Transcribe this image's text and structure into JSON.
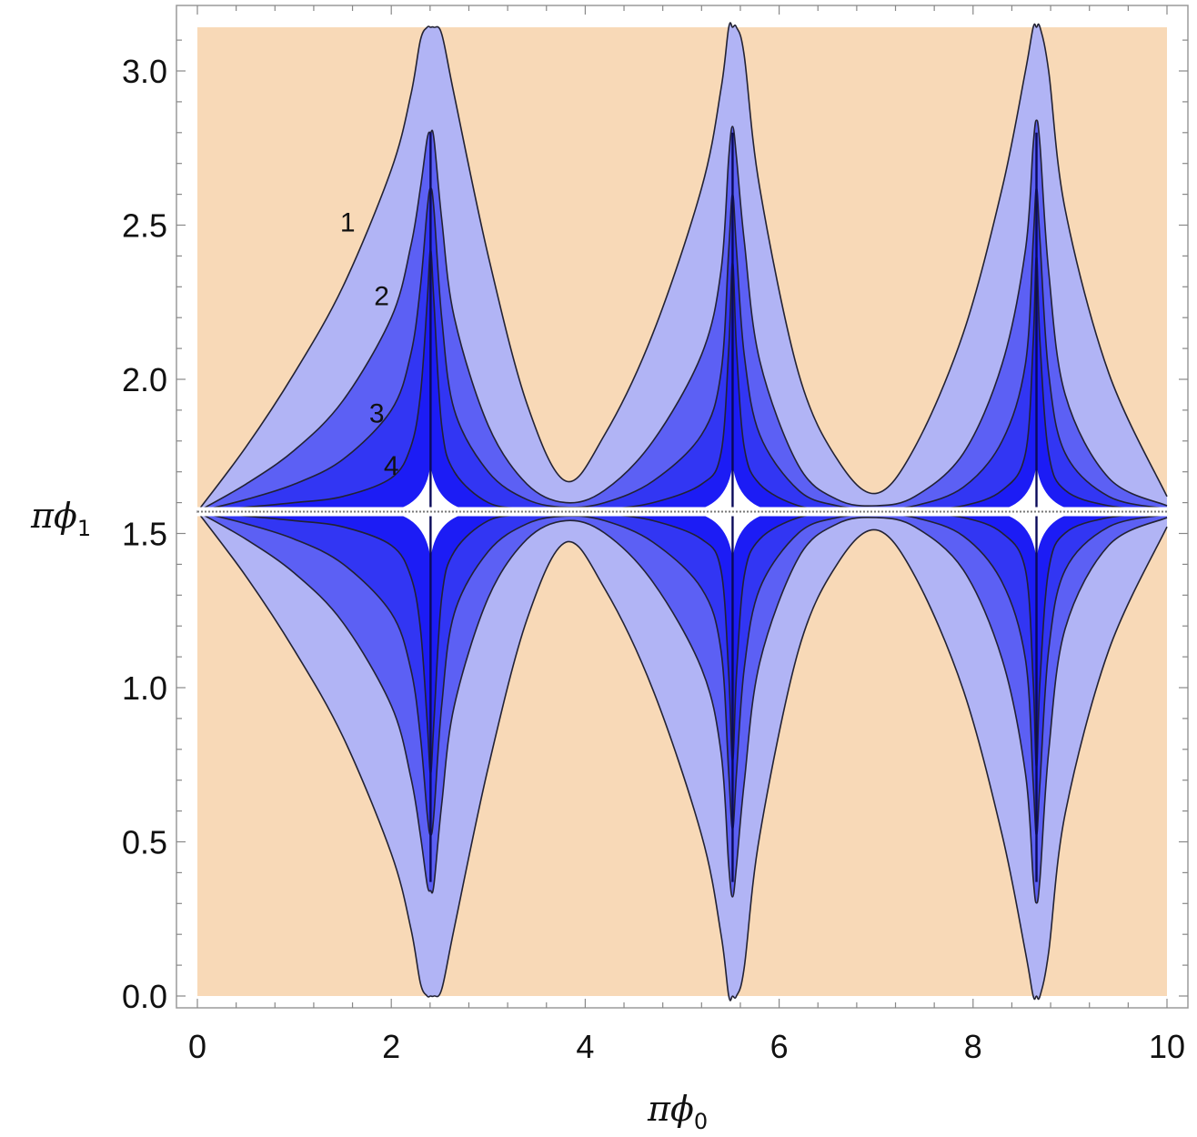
{
  "chart_data": {
    "type": "heatmap",
    "title": "",
    "xlabel": {
      "base": "πϕ",
      "sub": "0"
    },
    "ylabel": {
      "base": "πϕ",
      "sub": "1"
    },
    "xlim": [
      0,
      10
    ],
    "ylim": [
      0,
      3.14159
    ],
    "x_ticks": [
      0,
      2,
      4,
      6,
      8,
      10
    ],
    "x_tick_labels": [
      "0",
      "2",
      "4",
      "6",
      "8",
      "10"
    ],
    "y_ticks": [
      0.0,
      0.5,
      1.0,
      1.5,
      2.0,
      2.5,
      3.0
    ],
    "y_tick_labels": [
      "0.0",
      "0.5",
      "1.0",
      "1.5",
      "2.0",
      "2.5",
      "3.0"
    ],
    "grid": false,
    "legend": "none",
    "background_color": "#f8d9b7",
    "center_line_y": 1.5708,
    "spike_x": [
      2.405,
      5.52,
      8.654
    ],
    "levels": [
      {
        "label": "1",
        "color": "#b1b4f5",
        "label_at": [
          1.55,
          2.48
        ]
      },
      {
        "label": "2",
        "color": "#5c60f4",
        "label_at": [
          1.9,
          2.24
        ]
      },
      {
        "label": "3",
        "color": "#3236f3",
        "label_at": [
          1.85,
          1.86
        ]
      },
      {
        "label": "4",
        "color": "#1c1cf5",
        "label_at": [
          2.0,
          1.69
        ]
      }
    ],
    "inner_color": "#ffffff",
    "level_extent_y": [
      [
        0.004,
        0.42,
        0.0,
        0.44,
        0.1,
        0.4
      ],
      [
        0.003,
        0.3,
        0.0,
        0.31,
        0.07,
        0.29
      ],
      [
        0.002,
        0.2,
        0.0,
        0.21,
        0.05,
        0.2
      ],
      [
        0.0015,
        0.13,
        0.0,
        0.13,
        0.03,
        0.12
      ]
    ],
    "sample_x": [
      0,
      0.5,
      1.0,
      1.5,
      2.0,
      2.2,
      2.3,
      2.37,
      2.405,
      2.44,
      2.52,
      2.65,
      3.0,
      3.4,
      3.8,
      4.2,
      4.7,
      5.2,
      5.4,
      5.48,
      5.52,
      5.56,
      5.64,
      5.8,
      6.2,
      6.6,
      7.0,
      7.4,
      7.9,
      8.3,
      8.54,
      8.62,
      8.654,
      8.69,
      8.78,
      8.95,
      9.4,
      10.0
    ],
    "upper_boundaries": [
      [
        1.5708,
        1.78,
        2.02,
        2.3,
        2.68,
        2.92,
        3.1,
        3.1416,
        3.1416,
        3.1416,
        3.12,
        2.92,
        2.4,
        1.92,
        1.67,
        1.82,
        2.15,
        2.62,
        2.94,
        3.1416,
        3.1416,
        3.1416,
        3.05,
        2.62,
        2.02,
        1.74,
        1.63,
        1.78,
        2.15,
        2.62,
        3.0,
        3.1416,
        3.1416,
        3.1416,
        3.0,
        2.55,
        2.02,
        1.62
      ],
      [
        1.5708,
        1.66,
        1.77,
        1.93,
        2.2,
        2.43,
        2.62,
        2.78,
        2.8,
        2.78,
        2.52,
        2.2,
        1.85,
        1.66,
        1.6,
        1.64,
        1.8,
        2.08,
        2.35,
        2.72,
        2.82,
        2.72,
        2.45,
        2.06,
        1.72,
        1.61,
        1.59,
        1.62,
        1.76,
        2.05,
        2.42,
        2.76,
        2.84,
        2.76,
        2.35,
        1.95,
        1.68,
        1.59
      ],
      [
        1.5708,
        1.61,
        1.66,
        1.74,
        1.9,
        2.08,
        2.3,
        2.55,
        2.62,
        2.55,
        2.2,
        1.9,
        1.7,
        1.61,
        1.585,
        1.6,
        1.67,
        1.82,
        2.02,
        2.42,
        2.6,
        2.42,
        2.08,
        1.82,
        1.64,
        1.59,
        1.58,
        1.59,
        1.65,
        1.8,
        2.05,
        2.45,
        2.62,
        2.45,
        2.02,
        1.76,
        1.62,
        1.58
      ],
      [
        1.5708,
        1.585,
        1.6,
        1.62,
        1.68,
        1.78,
        1.95,
        2.25,
        2.42,
        2.25,
        1.85,
        1.7,
        1.6,
        1.58,
        1.575,
        1.578,
        1.6,
        1.66,
        1.76,
        2.1,
        2.38,
        2.1,
        1.78,
        1.66,
        1.59,
        1.577,
        1.574,
        1.576,
        1.59,
        1.64,
        1.76,
        2.12,
        2.4,
        2.12,
        1.76,
        1.64,
        1.59,
        1.575
      ]
    ]
  }
}
